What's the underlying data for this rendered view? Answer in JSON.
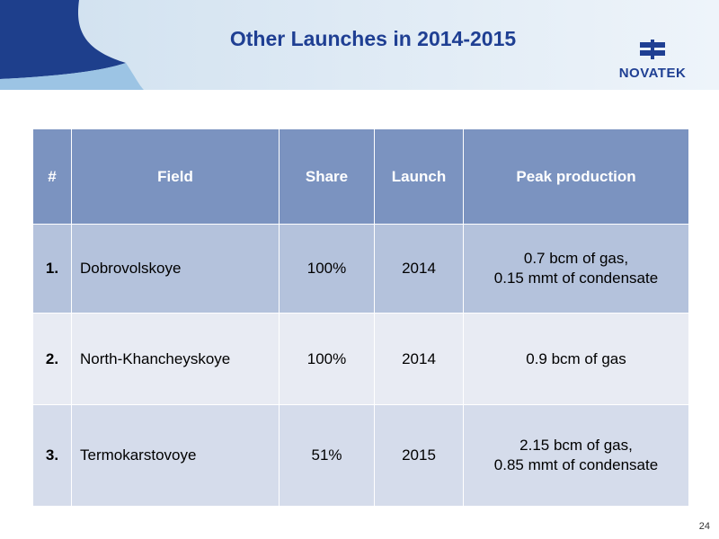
{
  "header": {
    "title": "Other Launches in 2014-2015",
    "logo": "NOVATEK"
  },
  "table": {
    "columns": [
      "#",
      "Field",
      "Share",
      "Launch",
      "Peak production"
    ],
    "rows": [
      [
        "1.",
        "Dobrovolskoye",
        "100%",
        "2014",
        [
          "0.7 bcm of gas,",
          "0.15 mmt of condensate"
        ]
      ],
      [
        "2.",
        "North-Khancheyskoye",
        "100%",
        "2014",
        [
          "0.9 bcm of gas"
        ]
      ],
      [
        "3.",
        "Termokarstovoye",
        "51%",
        "2015",
        [
          "2.15 bcm of gas,",
          "0.85 mmt of condensate"
        ]
      ]
    ]
  },
  "footer": {
    "page_number": "24"
  }
}
